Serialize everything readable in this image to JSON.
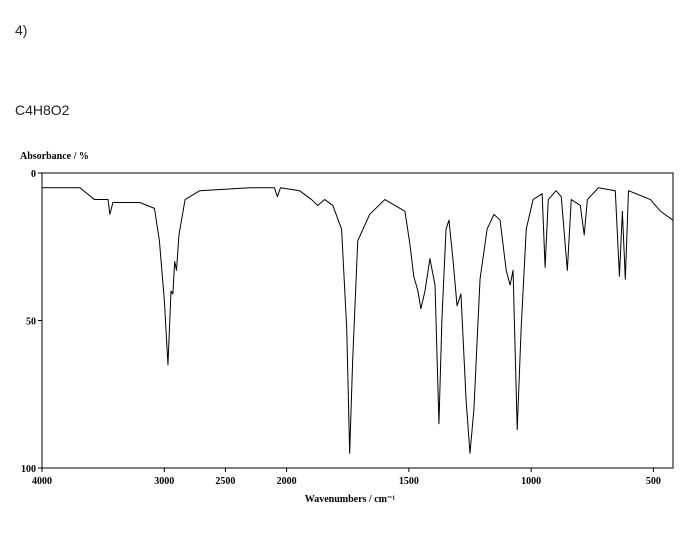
{
  "header": {
    "problem": "4)",
    "formula": "C4H8O2"
  },
  "chart_data": {
    "type": "line",
    "y_label": "Absorbance / %",
    "x_label": "Wavenumbers / cm⁻¹",
    "xlim": [
      4000,
      420
    ],
    "xscale_break": 2000,
    "xticks": [
      4000,
      3000,
      2500,
      2000,
      1500,
      1000,
      500
    ],
    "ylim": [
      0,
      100
    ],
    "yticks": [
      0,
      50,
      100
    ],
    "y_inverted": true,
    "series": [
      {
        "color": "#000000",
        "x": [
          4000,
          3690,
          3570,
          3460,
          3445,
          3420,
          3200,
          3080,
          3040,
          3000,
          2970,
          2945,
          2930,
          2915,
          2900,
          2880,
          2830,
          2710,
          2300,
          2100,
          2075,
          2050,
          1947,
          1898,
          1873,
          1844,
          1811,
          1775,
          1754,
          1742,
          1730,
          1709,
          1660,
          1598,
          1557,
          1516,
          1496,
          1480,
          1463,
          1451,
          1434,
          1414,
          1393,
          1377,
          1365,
          1348,
          1336,
          1320,
          1303,
          1287,
          1266,
          1250,
          1234,
          1209,
          1180,
          1152,
          1127,
          1102,
          1086,
          1074,
          1057,
          1041,
          1020,
          992,
          955,
          943,
          930,
          898,
          877,
          852,
          836,
          799,
          783,
          770,
          725,
          656,
          639,
          627,
          615,
          602,
          512,
          471,
          420
        ],
        "values": [
          5,
          5,
          9,
          9,
          14,
          10,
          10,
          12,
          23,
          43,
          65,
          40,
          41,
          30,
          33,
          21,
          9,
          6,
          5,
          5,
          8,
          5,
          6,
          9,
          11,
          9,
          11,
          19,
          53,
          95,
          64,
          23,
          14,
          9,
          11,
          13,
          24,
          35,
          40,
          46,
          40,
          29,
          38,
          85,
          50,
          19,
          16,
          29,
          45,
          41,
          77,
          95,
          80,
          36,
          19,
          14,
          16,
          33,
          38,
          33,
          87,
          53,
          19,
          9,
          7,
          32,
          9,
          6,
          8,
          33,
          9,
          11,
          21,
          9,
          5,
          6,
          35,
          13,
          36,
          6,
          9,
          13,
          16
        ]
      }
    ]
  }
}
